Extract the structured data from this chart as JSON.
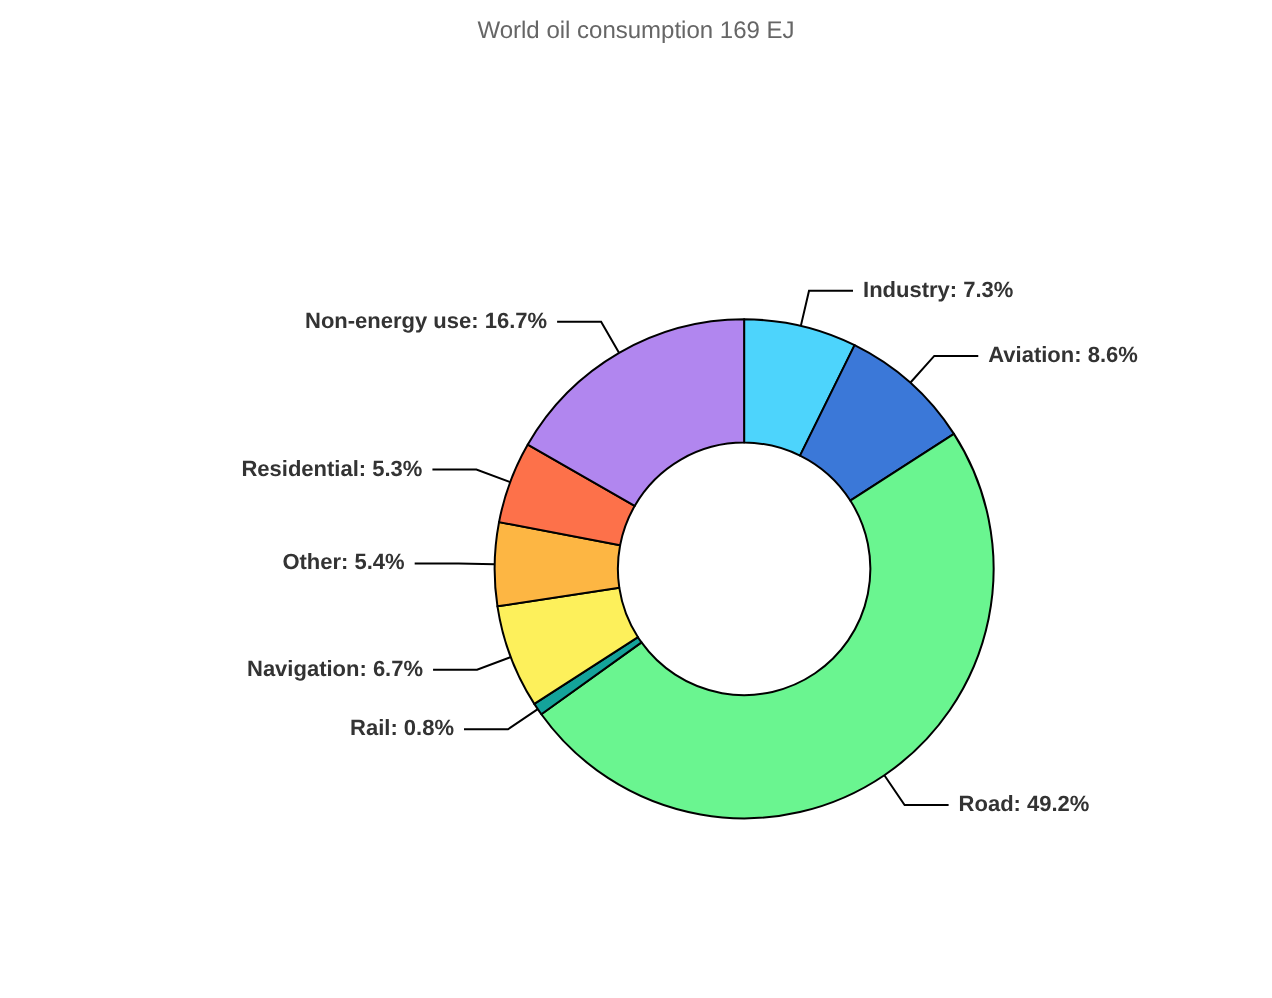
{
  "chart_data": {
    "type": "donut",
    "title": "World oil consumption 169 EJ",
    "categories": [
      "Industry",
      "Aviation",
      "Road",
      "Rail",
      "Navigation",
      "Other",
      "Residential",
      "Non-energy use"
    ],
    "values": [
      7.3,
      8.6,
      49.2,
      0.8,
      6.7,
      5.4,
      5.3,
      16.7
    ],
    "value_labels": [
      "7.3%",
      "8.6%",
      "49.2%",
      "0.8%",
      "6.7%",
      "5.4%",
      "5.3%",
      "16.7%"
    ],
    "colors": [
      "#4dd4fc",
      "#3b78d8",
      "#6af590",
      "#14a39a",
      "#fdf05b",
      "#fdb643",
      "#fd714a",
      "#b186ef"
    ],
    "legend": false
  }
}
